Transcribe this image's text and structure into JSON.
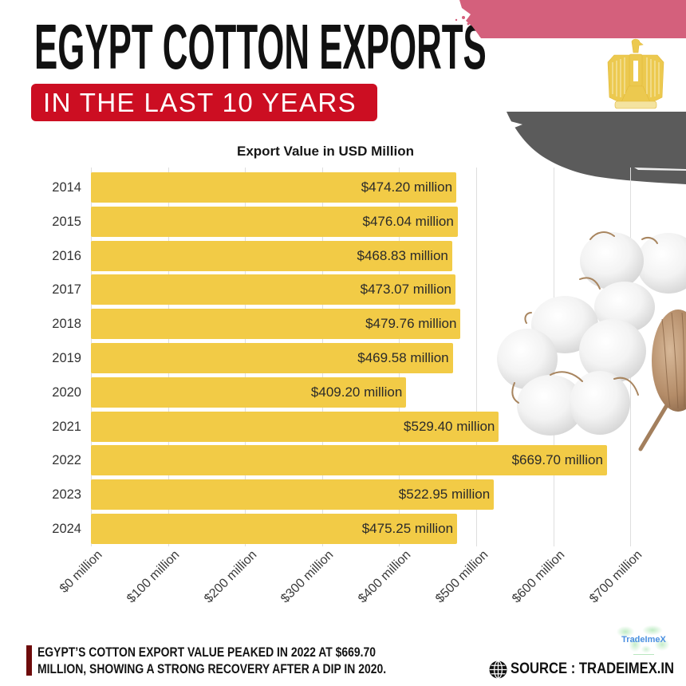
{
  "header": {
    "title": "EGYPT COTTON EXPORTS",
    "subtitle": "IN THE LAST 10 YEARS"
  },
  "chart_data": {
    "type": "bar",
    "orientation": "horizontal",
    "title": "Export Value in USD Million",
    "xlabel": "",
    "ylabel": "",
    "categories": [
      "2014",
      "2015",
      "2016",
      "2017",
      "2018",
      "2019",
      "2020",
      "2021",
      "2022",
      "2023",
      "2024"
    ],
    "values": [
      474.2,
      476.04,
      468.83,
      473.07,
      479.76,
      469.58,
      409.2,
      529.4,
      669.7,
      522.95,
      475.25
    ],
    "data_labels": [
      "$474.20 million",
      "$476.04 million",
      "$468.83 million",
      "$473.07 million",
      "$479.76 million",
      "$469.58 million",
      "$409.20 million",
      "$529.40 million",
      "$669.70 million",
      "$522.95 million",
      "$475.25 million"
    ],
    "unit": "USD million",
    "xlim": [
      0,
      700
    ],
    "x_ticks": [
      0,
      100,
      200,
      300,
      400,
      500,
      600,
      700
    ],
    "x_tick_labels": [
      "$0 million",
      "$100 million",
      "$200 million",
      "$300 million",
      "$400 million",
      "$500 million",
      "$600 million",
      "$700 million"
    ],
    "grid": true,
    "legend": null,
    "bar_color": "#f2cb46"
  },
  "footer": {
    "insight_lines": [
      "EGYPT’S COTTON EXPORT VALUE PEAKED IN 2022 AT $669.70",
      "MILLION, SHOWING A STRONG RECOVERY AFTER A DIP IN 2020."
    ],
    "logo_text": "TradeImeX",
    "source_label": "SOURCE : TRADEIMEX.IN"
  },
  "icons": {
    "flag": "egypt-flag-brush",
    "emblem": "eagle-of-saladin",
    "illustration": "cotton-boll",
    "source": "globe-icon"
  },
  "colors": {
    "title": "#111111",
    "subtitle_bg": "#cc0e22",
    "bar": "#f2cb46",
    "flag_red": "#d4607c",
    "flag_black": "#5b5b5b",
    "emblem_gold": "#ecc94f",
    "insight_accent": "#6e0b0b"
  }
}
